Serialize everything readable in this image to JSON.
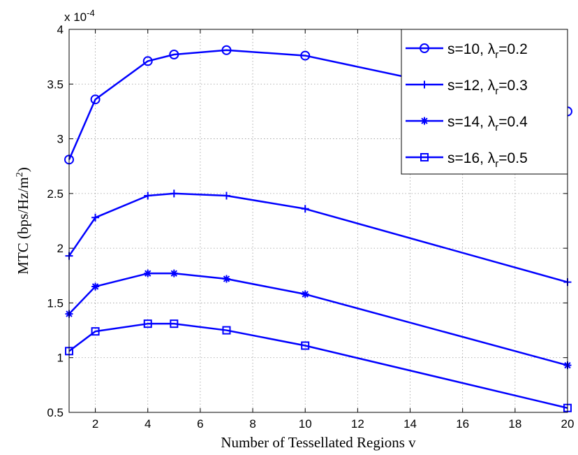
{
  "chart_data": {
    "type": "line",
    "xlabel": "Number of Tessellated Regions v",
    "ylabel": "MTC (bps/Hz/m",
    "ylabel_sup": "2",
    "ylabel_close": ")",
    "y_multiplier": "x 10",
    "y_multiplier_exp": "-4",
    "xlim": [
      1,
      20
    ],
    "ylim": [
      0.5,
      4
    ],
    "xticks": [
      "2",
      "4",
      "6",
      "8",
      "10",
      "12",
      "14",
      "16",
      "18",
      "20"
    ],
    "yticks": [
      "0.5",
      "1",
      "1.5",
      "2",
      "2.5",
      "3",
      "3.5",
      "4"
    ],
    "grid": true,
    "legend_position": "top-right",
    "line_color": "#0000ff",
    "x": [
      1,
      2,
      4,
      5,
      7,
      10,
      20
    ],
    "series": [
      {
        "name": "s=10, λr=0.2",
        "label_main": "s=10, λ",
        "label_sub": "r",
        "label_tail": "=0.2",
        "marker": "circle",
        "values": [
          2.81,
          3.36,
          3.71,
          3.77,
          3.81,
          3.76,
          3.25
        ]
      },
      {
        "name": "s=12, λr=0.3",
        "label_main": "s=12, λ",
        "label_sub": "r",
        "label_tail": "=0.3",
        "marker": "plus",
        "values": [
          1.93,
          2.28,
          2.48,
          2.5,
          2.48,
          2.36,
          1.69
        ]
      },
      {
        "name": "s=14, λr=0.4",
        "label_main": "s=14, λ",
        "label_sub": "r",
        "label_tail": "=0.4",
        "marker": "asterisk",
        "values": [
          1.4,
          1.65,
          1.77,
          1.77,
          1.72,
          1.58,
          0.93
        ]
      },
      {
        "name": "s=16, λr=0.5",
        "label_main": "s=16, λ",
        "label_sub": "r",
        "label_tail": "=0.5",
        "marker": "square",
        "values": [
          1.06,
          1.24,
          1.31,
          1.31,
          1.25,
          1.11,
          0.54
        ]
      }
    ]
  }
}
